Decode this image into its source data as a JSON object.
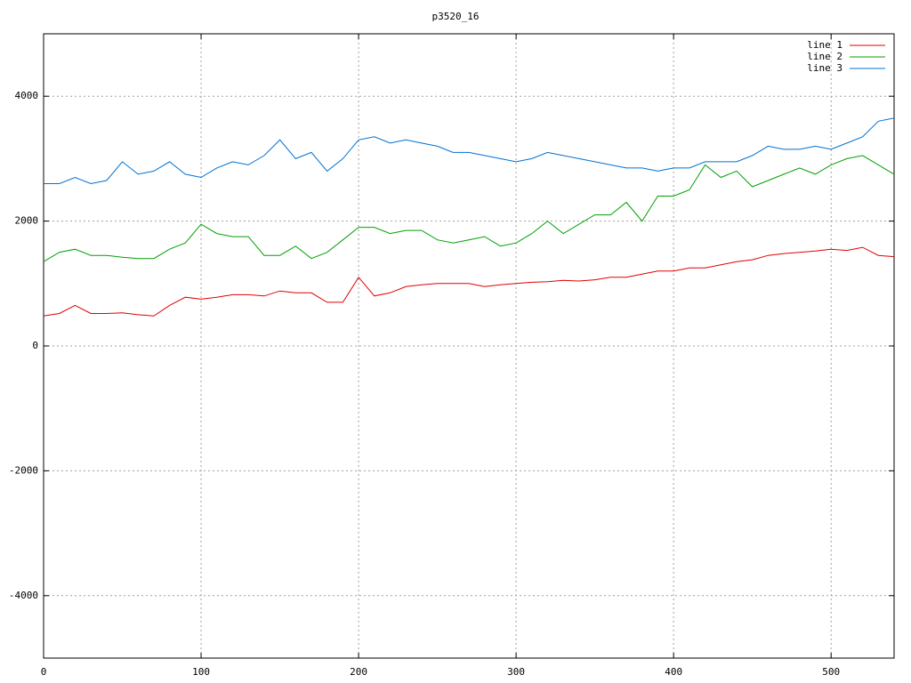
{
  "chart_data": {
    "type": "line",
    "title": "p3520_16",
    "x": [
      0,
      10,
      20,
      30,
      40,
      50,
      60,
      70,
      80,
      90,
      100,
      110,
      120,
      130,
      140,
      150,
      160,
      170,
      180,
      190,
      200,
      210,
      220,
      230,
      240,
      250,
      260,
      270,
      280,
      290,
      300,
      310,
      320,
      330,
      340,
      350,
      360,
      370,
      380,
      390,
      400,
      410,
      420,
      430,
      440,
      450,
      460,
      470,
      480,
      490,
      500,
      510,
      520,
      530,
      540
    ],
    "series": [
      {
        "name": "line 1",
        "color": "#e00000",
        "values": [
          480,
          520,
          650,
          520,
          520,
          530,
          500,
          480,
          650,
          780,
          750,
          780,
          820,
          820,
          800,
          880,
          850,
          850,
          700,
          700,
          1100,
          800,
          850,
          950,
          980,
          1000,
          1000,
          1000,
          950,
          980,
          1000,
          1020,
          1030,
          1050,
          1040,
          1060,
          1100,
          1100,
          1150,
          1200,
          1200,
          1250,
          1250,
          1300,
          1350,
          1380,
          1450,
          1480,
          1500,
          1520,
          1550,
          1530,
          1580,
          1450,
          1430
        ]
      },
      {
        "name": "line 2",
        "color": "#00a000",
        "values": [
          1350,
          1500,
          1550,
          1450,
          1450,
          1420,
          1400,
          1400,
          1550,
          1650,
          1950,
          1800,
          1750,
          1750,
          1450,
          1450,
          1600,
          1400,
          1500,
          1700,
          1900,
          1900,
          1800,
          1850,
          1850,
          1700,
          1650,
          1700,
          1750,
          1600,
          1650,
          1800,
          2000,
          1800,
          1950,
          2100,
          2100,
          2300,
          2000,
          2400,
          2400,
          2500,
          2900,
          2700,
          2800,
          2550,
          2650,
          2750,
          2850,
          2750,
          2900,
          3000,
          3050,
          2900,
          2750
        ]
      },
      {
        "name": "line 3",
        "color": "#0070d0",
        "values": [
          2600,
          2600,
          2700,
          2600,
          2650,
          2950,
          2750,
          2800,
          2950,
          2750,
          2700,
          2850,
          2950,
          2900,
          3050,
          3300,
          3000,
          3100,
          2800,
          3000,
          3300,
          3350,
          3250,
          3300,
          3250,
          3200,
          3100,
          3100,
          3050,
          3000,
          2950,
          3000,
          3100,
          3050,
          3000,
          2950,
          2900,
          2850,
          2850,
          2800,
          2850,
          2850,
          2950,
          2950,
          2950,
          3050,
          3200,
          3150,
          3150,
          3200,
          3150,
          3250,
          3350,
          3600,
          3650
        ]
      }
    ],
    "xlim": [
      0,
      540
    ],
    "ylim": [
      -5000,
      5000
    ],
    "xticks": [
      0,
      100,
      200,
      300,
      400,
      500
    ],
    "yticks": [
      -4000,
      -2000,
      0,
      2000,
      4000
    ],
    "grid": true,
    "legend": "top-right"
  }
}
